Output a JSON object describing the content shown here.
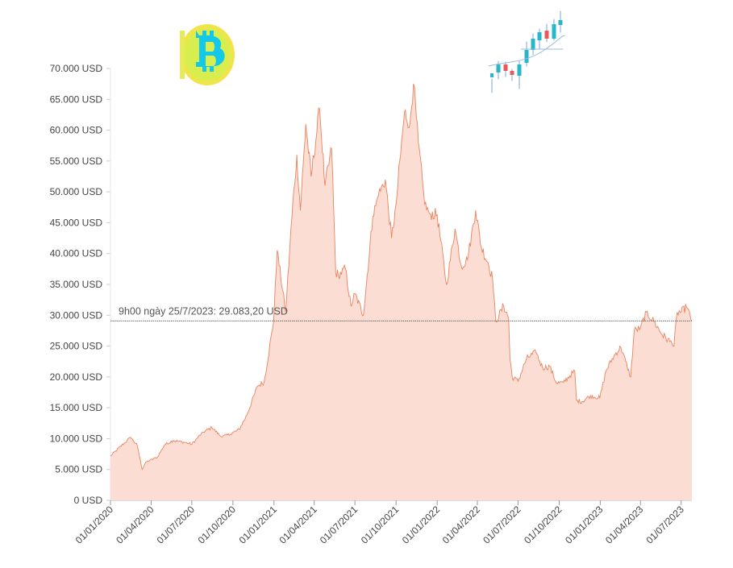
{
  "chart_data": {
    "type": "area",
    "title": "",
    "xlabel": "",
    "ylabel": "",
    "ylim": [
      0,
      70000
    ],
    "xlim": [
      "2020-01-01",
      "2023-07-25"
    ],
    "grid": false,
    "y_ticks": [
      0,
      5000,
      10000,
      15000,
      20000,
      25000,
      30000,
      35000,
      40000,
      45000,
      50000,
      55000,
      60000,
      65000,
      70000
    ],
    "y_tick_labels": [
      "0 USD",
      "5.000 USD",
      "10.000 USD",
      "15.000 USD",
      "20.000 USD",
      "25.000 USD",
      "30.000 USD",
      "35.000 USD",
      "40.000 USD",
      "45.000 USD",
      "50.000 USD",
      "55.000 USD",
      "60.000 USD",
      "65.000 USD",
      "70.000 USD"
    ],
    "x_ticks": [
      "2020-01-01",
      "2020-04-01",
      "2020-07-01",
      "2020-10-01",
      "2021-01-01",
      "2021-04-01",
      "2021-07-01",
      "2021-10-01",
      "2022-01-01",
      "2022-04-01",
      "2022-07-01",
      "2022-10-01",
      "2023-01-01",
      "2023-04-01",
      "2023-07-01"
    ],
    "x_tick_labels": [
      "01/01/2020",
      "01/04/2020",
      "01/07/2020",
      "01/10/2020",
      "01/01/2021",
      "01/04/2021",
      "01/07/2021",
      "01/10/2021",
      "01/01/2022",
      "01/04/2022",
      "01/07/2022",
      "01/10/2022",
      "01/01/2023",
      "01/04/2023",
      "01/07/2023"
    ],
    "series": [
      {
        "x": [
          "2020-01-01",
          "2020-02-01",
          "2020-02-15",
          "2020-03-01",
          "2020-03-12",
          "2020-03-20",
          "2020-04-15",
          "2020-05-01",
          "2020-05-20",
          "2020-06-15",
          "2020-07-01",
          "2020-07-25",
          "2020-08-15",
          "2020-09-05",
          "2020-09-25",
          "2020-10-15",
          "2020-11-01",
          "2020-11-25",
          "2020-12-10",
          "2020-12-31",
          "2021-01-08",
          "2021-01-27",
          "2021-02-10",
          "2021-02-21",
          "2021-03-01",
          "2021-03-13",
          "2021-03-25",
          "2021-04-13",
          "2021-04-25",
          "2021-05-10",
          "2021-05-19",
          "2021-05-25",
          "2021-06-10",
          "2021-06-22",
          "2021-07-01",
          "2021-07-20",
          "2021-08-10",
          "2021-08-23",
          "2021-09-07",
          "2021-09-21",
          "2021-10-01",
          "2021-10-20",
          "2021-11-01",
          "2021-11-09",
          "2021-11-20",
          "2021-12-04",
          "2021-12-15",
          "2022-01-01",
          "2022-01-22",
          "2022-02-10",
          "2022-02-24",
          "2022-03-10",
          "2022-03-28",
          "2022-04-10",
          "2022-04-25",
          "2022-05-05",
          "2022-05-12",
          "2022-05-30",
          "2022-06-10",
          "2022-06-13",
          "2022-06-18",
          "2022-07-01",
          "2022-07-20",
          "2022-08-10",
          "2022-08-25",
          "2022-09-10",
          "2022-09-25",
          "2022-10-10",
          "2022-10-25",
          "2022-11-05",
          "2022-11-09",
          "2022-11-21",
          "2022-12-10",
          "2022-12-31",
          "2023-01-14",
          "2023-02-01",
          "2023-02-16",
          "2023-03-10",
          "2023-03-18",
          "2023-04-01",
          "2023-04-14",
          "2023-05-01",
          "2023-05-20",
          "2023-06-10",
          "2023-06-15",
          "2023-06-22",
          "2023-07-01",
          "2023-07-13",
          "2023-07-25"
        ],
        "y": [
          7200,
          9300,
          10200,
          8900,
          5000,
          6200,
          7000,
          9000,
          9700,
          9400,
          9100,
          11000,
          11800,
          10300,
          10700,
          11500,
          13800,
          18500,
          19200,
          29000,
          40500,
          30500,
          46000,
          56000,
          47000,
          61000,
          52500,
          63500,
          51000,
          57000,
          37000,
          36500,
          37500,
          31500,
          33500,
          30000,
          46000,
          49500,
          52000,
          42500,
          48000,
          63000,
          61000,
          67500,
          58000,
          48000,
          46500,
          46300,
          35000,
          44000,
          38000,
          39000,
          47000,
          41000,
          38500,
          36000,
          29000,
          31500,
          29500,
          23000,
          20000,
          19300,
          23000,
          24000,
          21500,
          21700,
          19000,
          19100,
          20200,
          21000,
          16200,
          16000,
          17000,
          16600,
          21000,
          23500,
          24800,
          20000,
          27500,
          28000,
          30500,
          29000,
          26800,
          25500,
          25000,
          30500,
          30500,
          31300,
          29083.2
        ]
      }
    ],
    "colors": {
      "line": "#e8845f",
      "fill": "#fbddd3",
      "reference_line": "#555555"
    },
    "reference": {
      "date": "2023-07-25",
      "value": 29083.2,
      "label": "9h00 ngày 25/7/2023: 29.083,20 USD"
    },
    "decorations": [
      "bitcoin-coin-icon",
      "candlestick-chart-icon"
    ]
  }
}
